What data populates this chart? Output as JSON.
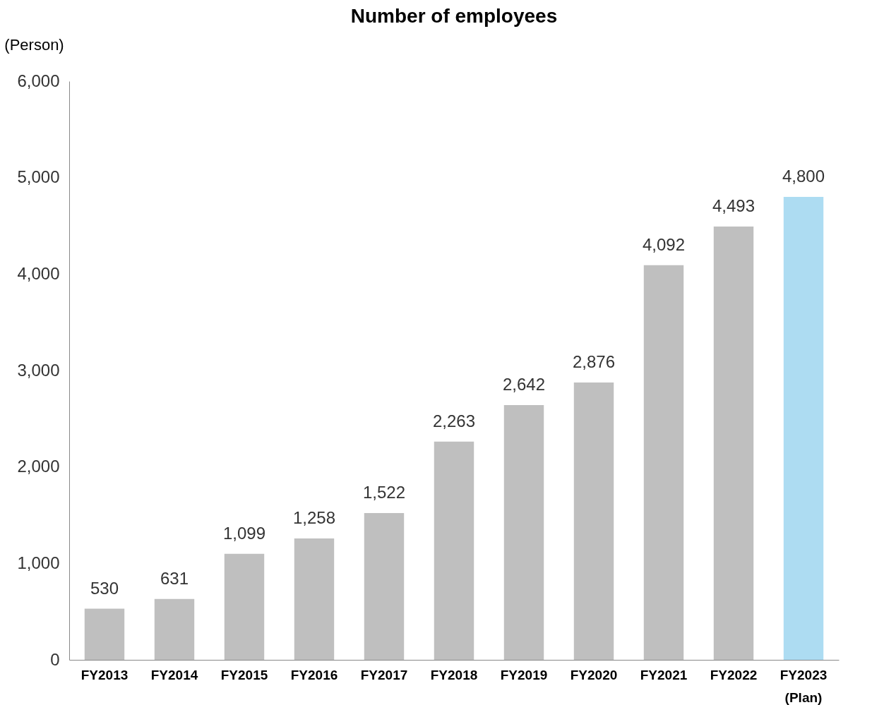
{
  "chart_data": {
    "type": "bar",
    "title": "Number of employees",
    "ylabel": "(Person)",
    "categories": [
      "FY2013",
      "FY2014",
      "FY2015",
      "FY2016",
      "FY2017",
      "FY2018",
      "FY2019",
      "FY2020",
      "FY2021",
      "FY2022",
      "FY2023\n(Plan)"
    ],
    "values": [
      530,
      631,
      1099,
      1258,
      1522,
      2263,
      2642,
      2876,
      4092,
      4493,
      4800
    ],
    "value_labels": [
      "530",
      "631",
      "1,099",
      "1,258",
      "1,522",
      "2,263",
      "2,642",
      "2,876",
      "4,092",
      "4,493",
      "4,800"
    ],
    "colors": [
      "#bfbfbf",
      "#bfbfbf",
      "#bfbfbf",
      "#bfbfbf",
      "#bfbfbf",
      "#bfbfbf",
      "#bfbfbf",
      "#bfbfbf",
      "#bfbfbf",
      "#bfbfbf",
      "#addcf2"
    ],
    "ylim": [
      0,
      6000
    ],
    "yticks": [
      0,
      {
        "value": 1000,
        "label": "1,000"
      },
      {
        "value": 2000,
        "label": "2,000"
      },
      {
        "value": 3000,
        "label": "3,000"
      },
      {
        "value": 4000,
        "label": "4,000"
      },
      {
        "value": 5000,
        "label": "5,000"
      },
      {
        "value": 6000,
        "label": "6,000"
      }
    ],
    "grid": false
  }
}
